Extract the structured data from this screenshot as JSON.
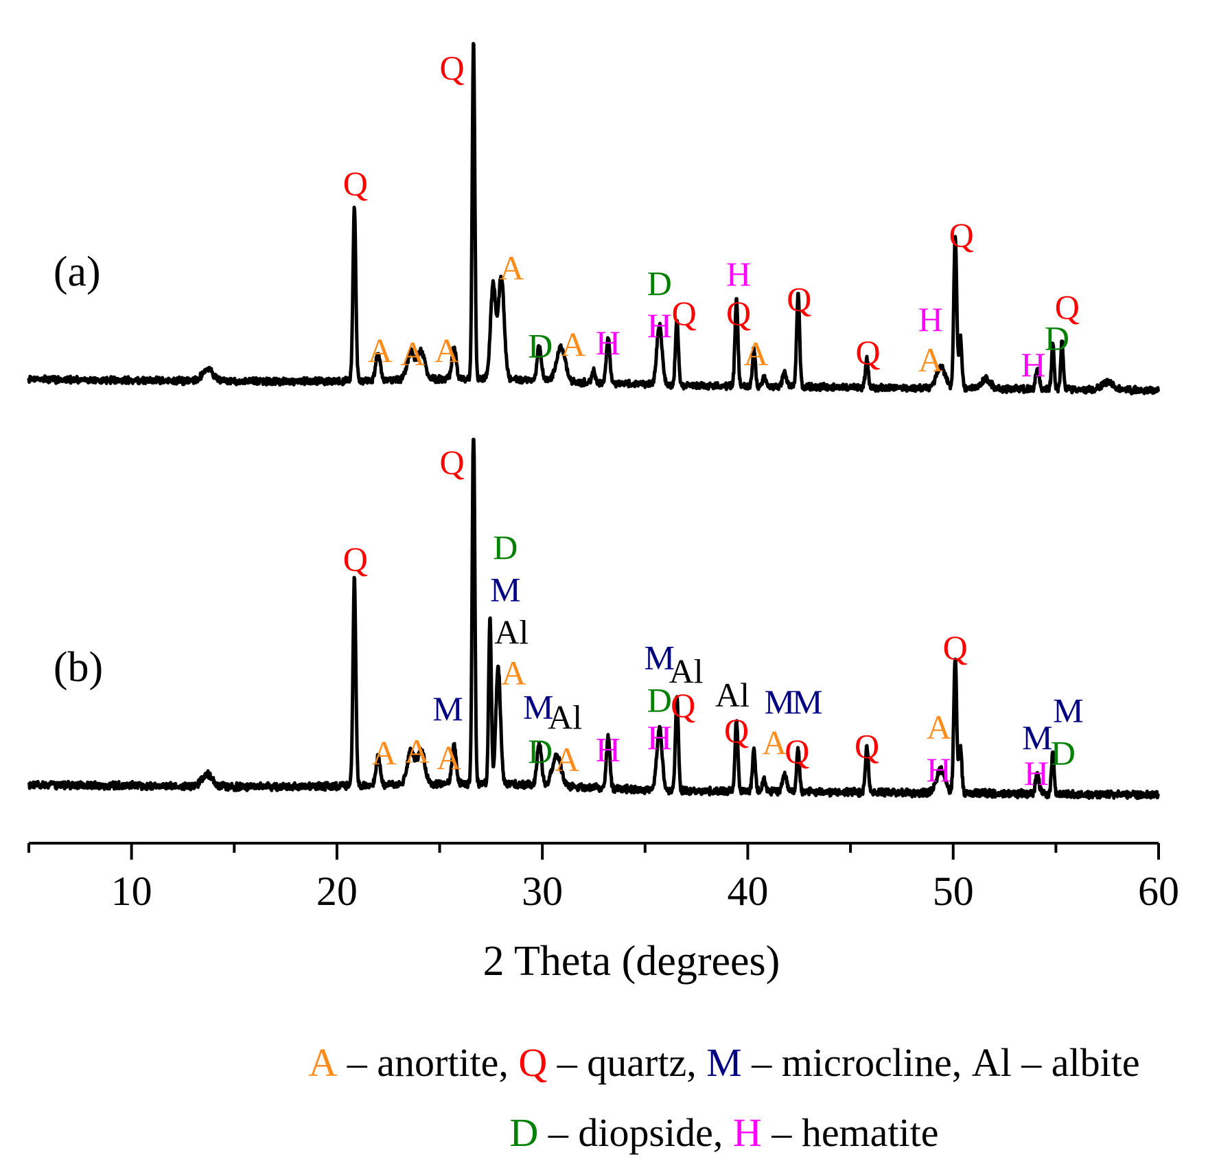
{
  "chart_data": {
    "type": "line",
    "xlabel": "2 Theta (degrees)",
    "ylabel": "",
    "xlim": [
      5,
      60
    ],
    "x_ticks": [
      10,
      20,
      30,
      40,
      50,
      60
    ],
    "x_tick_labels": [
      "10",
      "20",
      "30",
      "40",
      "50",
      "60"
    ],
    "minor_tick_step": 5,
    "phases": {
      "A": {
        "name": "anortite",
        "color": "#ff8c1a"
      },
      "Q": {
        "name": "quartz",
        "color": "#ff0000"
      },
      "M": {
        "name": "microcline",
        "color": "#000080"
      },
      "Al": {
        "name": "albite",
        "color": "#000000"
      },
      "D": {
        "name": "diopside",
        "color": "#008000"
      },
      "H": {
        "name": "hematite",
        "color": "#ff00ff"
      }
    },
    "legend": [
      [
        {
          "symbol": "A",
          "text": " – anortite, ",
          "color": "#ff8c1a"
        },
        {
          "symbol": "Q",
          "text": " – quartz, ",
          "color": "#ff0000"
        },
        {
          "symbol": "M",
          "text": " – microcline, ",
          "color": "#000080"
        },
        {
          "symbol": "Al",
          "text": " – albite",
          "color": "#000000"
        }
      ],
      [
        {
          "symbol": "D",
          "text": " – diopside, ",
          "color": "#008000"
        },
        {
          "symbol": "H",
          "text": " – hematite",
          "color": "#ff00ff"
        }
      ]
    ],
    "series": [
      {
        "name": "(a)",
        "baseline": 1.0,
        "baseline_slope": -0.35,
        "peaks": [
          {
            "x": 13.7,
            "h": 0.4,
            "w": 0.35
          },
          {
            "x": 20.85,
            "h": 5.6,
            "w": 0.1
          },
          {
            "x": 22.0,
            "h": 0.9,
            "w": 0.15
          },
          {
            "x": 23.6,
            "h": 0.9,
            "w": 0.25
          },
          {
            "x": 24.1,
            "h": 0.9,
            "w": 0.25
          },
          {
            "x": 25.7,
            "h": 1.0,
            "w": 0.15
          },
          {
            "x": 26.65,
            "h": 10.8,
            "w": 0.09
          },
          {
            "x": 27.6,
            "h": 3.0,
            "w": 0.18
          },
          {
            "x": 28.0,
            "h": 3.3,
            "w": 0.2
          },
          {
            "x": 29.85,
            "h": 1.1,
            "w": 0.15
          },
          {
            "x": 30.9,
            "h": 1.1,
            "w": 0.3
          },
          {
            "x": 32.5,
            "h": 0.4,
            "w": 0.1
          },
          {
            "x": 33.2,
            "h": 1.5,
            "w": 0.12
          },
          {
            "x": 35.7,
            "h": 1.9,
            "w": 0.18
          },
          {
            "x": 36.55,
            "h": 2.1,
            "w": 0.1
          },
          {
            "x": 39.45,
            "h": 2.8,
            "w": 0.1
          },
          {
            "x": 40.3,
            "h": 1.2,
            "w": 0.1
          },
          {
            "x": 40.8,
            "h": 0.3,
            "w": 0.1
          },
          {
            "x": 41.8,
            "h": 0.4,
            "w": 0.15
          },
          {
            "x": 42.45,
            "h": 3.0,
            "w": 0.1
          },
          {
            "x": 45.8,
            "h": 0.9,
            "w": 0.1
          },
          {
            "x": 49.4,
            "h": 0.7,
            "w": 0.3
          },
          {
            "x": 50.1,
            "h": 4.9,
            "w": 0.1
          },
          {
            "x": 50.35,
            "h": 1.6,
            "w": 0.1
          },
          {
            "x": 51.6,
            "h": 0.3,
            "w": 0.3
          },
          {
            "x": 54.1,
            "h": 0.7,
            "w": 0.12
          },
          {
            "x": 54.85,
            "h": 1.4,
            "w": 0.09
          },
          {
            "x": 55.3,
            "h": 1.5,
            "w": 0.09
          },
          {
            "x": 57.5,
            "h": 0.25,
            "w": 0.4
          }
        ],
        "labels": [
          {
            "x": 20.9,
            "y": 6.9,
            "text": "Q",
            "phase": "Q"
          },
          {
            "x": 25.6,
            "y": 10.6,
            "text": "Q",
            "phase": "Q"
          },
          {
            "x": 22.1,
            "y": 1.55,
            "text": "A",
            "phase": "A"
          },
          {
            "x": 23.7,
            "y": 1.45,
            "text": "A",
            "phase": "A"
          },
          {
            "x": 25.35,
            "y": 1.55,
            "text": "A",
            "phase": "A"
          },
          {
            "x": 28.5,
            "y": 4.2,
            "text": "A",
            "phase": "A"
          },
          {
            "x": 29.9,
            "y": 1.7,
            "text": "D",
            "phase": "D"
          },
          {
            "x": 31.5,
            "y": 1.75,
            "text": "A",
            "phase": "A"
          },
          {
            "x": 33.2,
            "y": 1.8,
            "text": "H",
            "phase": "H"
          },
          {
            "x": 35.7,
            "y": 2.35,
            "text": "H",
            "phase": "H"
          },
          {
            "x": 35.7,
            "y": 3.7,
            "text": "D",
            "phase": "D"
          },
          {
            "x": 36.9,
            "y": 2.75,
            "text": "Q",
            "phase": "Q"
          },
          {
            "x": 39.55,
            "y": 2.75,
            "text": "Q",
            "phase": "Q"
          },
          {
            "x": 39.55,
            "y": 4.0,
            "text": "H",
            "phase": "H"
          },
          {
            "x": 40.4,
            "y": 1.45,
            "text": "A",
            "phase": "A"
          },
          {
            "x": 42.5,
            "y": 3.2,
            "text": "Q",
            "phase": "Q"
          },
          {
            "x": 45.85,
            "y": 1.5,
            "text": "Q",
            "phase": "Q"
          },
          {
            "x": 48.9,
            "y": 1.25,
            "text": "A",
            "phase": "A"
          },
          {
            "x": 48.9,
            "y": 2.55,
            "text": "H",
            "phase": "H"
          },
          {
            "x": 50.4,
            "y": 5.25,
            "text": "Q",
            "phase": "Q"
          },
          {
            "x": 53.9,
            "y": 1.1,
            "text": "H",
            "phase": "H"
          },
          {
            "x": 55.05,
            "y": 1.95,
            "text": "D",
            "phase": "D"
          },
          {
            "x": 55.55,
            "y": 2.95,
            "text": "Q",
            "phase": "Q"
          },
          {
            "x": 6.2,
            "y": 4.0,
            "text": "(a)",
            "phase": "panel"
          }
        ]
      },
      {
        "name": "(b)",
        "baseline": 0.95,
        "baseline_slope": -0.3,
        "peaks": [
          {
            "x": 13.7,
            "h": 0.35,
            "w": 0.35
          },
          {
            "x": 20.85,
            "h": 6.1,
            "w": 0.1
          },
          {
            "x": 22.0,
            "h": 0.85,
            "w": 0.15
          },
          {
            "x": 23.6,
            "h": 1.0,
            "w": 0.25
          },
          {
            "x": 24.1,
            "h": 1.0,
            "w": 0.25
          },
          {
            "x": 25.7,
            "h": 1.1,
            "w": 0.15
          },
          {
            "x": 26.65,
            "h": 10.8,
            "w": 0.09
          },
          {
            "x": 27.45,
            "h": 5.0,
            "w": 0.09
          },
          {
            "x": 27.85,
            "h": 3.4,
            "w": 0.16
          },
          {
            "x": 29.85,
            "h": 1.25,
            "w": 0.15
          },
          {
            "x": 30.7,
            "h": 0.9,
            "w": 0.3
          },
          {
            "x": 33.2,
            "h": 1.5,
            "w": 0.12
          },
          {
            "x": 35.7,
            "h": 1.8,
            "w": 0.18
          },
          {
            "x": 36.55,
            "h": 2.75,
            "w": 0.1
          },
          {
            "x": 39.45,
            "h": 2.1,
            "w": 0.1
          },
          {
            "x": 40.3,
            "h": 1.2,
            "w": 0.1
          },
          {
            "x": 40.8,
            "h": 0.4,
            "w": 0.1
          },
          {
            "x": 41.8,
            "h": 0.5,
            "w": 0.15
          },
          {
            "x": 42.45,
            "h": 1.3,
            "w": 0.1
          },
          {
            "x": 45.8,
            "h": 1.4,
            "w": 0.1
          },
          {
            "x": 49.4,
            "h": 0.7,
            "w": 0.3
          },
          {
            "x": 50.1,
            "h": 4.0,
            "w": 0.1
          },
          {
            "x": 50.35,
            "h": 1.3,
            "w": 0.1
          },
          {
            "x": 54.1,
            "h": 0.6,
            "w": 0.12
          },
          {
            "x": 54.85,
            "h": 1.2,
            "w": 0.09
          }
        ],
        "labels": [
          {
            "x": 20.9,
            "y": 7.25,
            "text": "Q",
            "phase": "Q"
          },
          {
            "x": 25.6,
            "y": 10.1,
            "text": "Q",
            "phase": "Q"
          },
          {
            "x": 22.3,
            "y": 1.55,
            "text": "A",
            "phase": "A"
          },
          {
            "x": 23.9,
            "y": 1.6,
            "text": "A",
            "phase": "A"
          },
          {
            "x": 25.45,
            "y": 1.4,
            "text": "A",
            "phase": "A"
          },
          {
            "x": 25.4,
            "y": 2.85,
            "text": "M",
            "phase": "M"
          },
          {
            "x": 28.2,
            "y": 7.6,
            "text": "D",
            "phase": "D"
          },
          {
            "x": 28.2,
            "y": 6.35,
            "text": "M",
            "phase": "M"
          },
          {
            "x": 28.5,
            "y": 5.1,
            "text": "Al",
            "phase": "Al"
          },
          {
            "x": 28.6,
            "y": 3.9,
            "text": "A",
            "phase": "A"
          },
          {
            "x": 29.8,
            "y": 2.9,
            "text": "M",
            "phase": "M"
          },
          {
            "x": 31.1,
            "y": 2.6,
            "text": "Al",
            "phase": "Al"
          },
          {
            "x": 29.9,
            "y": 1.6,
            "text": "D",
            "phase": "D"
          },
          {
            "x": 31.2,
            "y": 1.35,
            "text": "A",
            "phase": "A"
          },
          {
            "x": 33.2,
            "y": 1.65,
            "text": "H",
            "phase": "H"
          },
          {
            "x": 35.7,
            "y": 4.35,
            "text": "M",
            "phase": "M"
          },
          {
            "x": 37.0,
            "y": 3.95,
            "text": "Al",
            "phase": "Al"
          },
          {
            "x": 35.7,
            "y": 3.1,
            "text": "D",
            "phase": "D"
          },
          {
            "x": 35.7,
            "y": 2.0,
            "text": "H",
            "phase": "H"
          },
          {
            "x": 36.85,
            "y": 2.95,
            "text": "Q",
            "phase": "Q"
          },
          {
            "x": 39.25,
            "y": 3.25,
            "text": "Al",
            "phase": "Al"
          },
          {
            "x": 39.45,
            "y": 2.2,
            "text": "Q",
            "phase": "Q"
          },
          {
            "x": 41.55,
            "y": 3.05,
            "text": "M",
            "phase": "M"
          },
          {
            "x": 42.9,
            "y": 3.05,
            "text": "M",
            "phase": "M"
          },
          {
            "x": 41.3,
            "y": 1.85,
            "text": "A",
            "phase": "A"
          },
          {
            "x": 42.4,
            "y": 1.6,
            "text": "Q",
            "phase": "Q"
          },
          {
            "x": 45.8,
            "y": 1.75,
            "text": "Q",
            "phase": "Q"
          },
          {
            "x": 49.3,
            "y": 2.3,
            "text": "A",
            "phase": "A"
          },
          {
            "x": 49.3,
            "y": 1.05,
            "text": "H",
            "phase": "H"
          },
          {
            "x": 50.1,
            "y": 4.65,
            "text": "Q",
            "phase": "Q"
          },
          {
            "x": 54.1,
            "y": 2.0,
            "text": "M",
            "phase": "M"
          },
          {
            "x": 55.6,
            "y": 2.8,
            "text": "M",
            "phase": "M"
          },
          {
            "x": 54.05,
            "y": 0.95,
            "text": "H",
            "phase": "H"
          },
          {
            "x": 55.35,
            "y": 1.55,
            "text": "D",
            "phase": "D"
          },
          {
            "x": 6.2,
            "y": 4.0,
            "text": "(b)",
            "phase": "panel"
          }
        ]
      }
    ]
  }
}
